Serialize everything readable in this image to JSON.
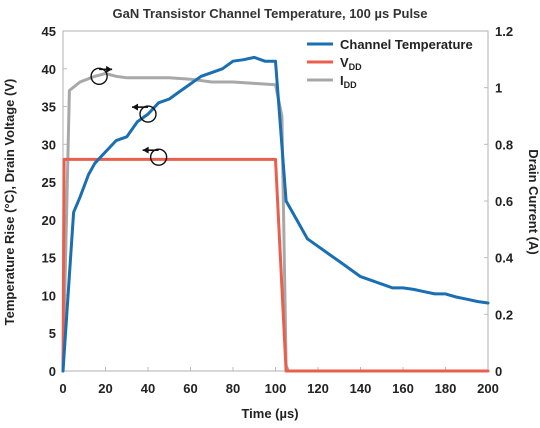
{
  "chart_data": {
    "type": "line",
    "title": "GaN Transistor Channel Temperature, 100 µs Pulse",
    "xlabel": "Time (µs)",
    "ylabel_left": "Temperature Rise (°C), Drain Voltage (V)",
    "ylabel_right": "Drain Current (A)",
    "xlim": [
      0,
      200
    ],
    "ylim_left": [
      0,
      45
    ],
    "ylim_right": [
      0,
      1.2
    ],
    "x_ticks": [
      "0",
      "20",
      "40",
      "60",
      "80",
      "100",
      "120",
      "140",
      "160",
      "180",
      "200"
    ],
    "y_left_ticks": [
      "0",
      "5",
      "10",
      "15",
      "20",
      "25",
      "30",
      "35",
      "40",
      "45"
    ],
    "y_right_ticks": [
      "0",
      "0.2",
      "0.4",
      "0.6",
      "0.8",
      "1",
      "1.2"
    ],
    "grid": false,
    "legend_position": "top-right",
    "series": [
      {
        "name": "Channel Temperature",
        "axis": "left",
        "color": "#1a6fb3",
        "x": [
          0,
          5,
          8,
          12,
          15,
          20,
          25,
          30,
          35,
          40,
          45,
          50,
          55,
          60,
          65,
          70,
          75,
          80,
          85,
          90,
          95,
          100,
          105,
          110,
          115,
          120,
          125,
          130,
          135,
          140,
          145,
          150,
          155,
          160,
          165,
          170,
          175,
          180,
          185,
          190,
          195,
          200
        ],
        "y": [
          0,
          21,
          23,
          26,
          27.5,
          29,
          30.5,
          31,
          33,
          34,
          35.5,
          36,
          37,
          38,
          39,
          39.5,
          40,
          41,
          41.2,
          41.5,
          41,
          41,
          22.5,
          20,
          17.5,
          16.5,
          15.5,
          14.5,
          13.5,
          12.5,
          12,
          11.5,
          11,
          11,
          10.8,
          10.5,
          10.2,
          10.2,
          9.8,
          9.5,
          9.2,
          9
        ]
      },
      {
        "name": "VDD",
        "axis": "left",
        "color": "#e8604c",
        "x": [
          0,
          0.5,
          100,
          105,
          200
        ],
        "y": [
          0,
          28,
          28,
          0,
          0
        ]
      },
      {
        "name": "IDD",
        "axis": "right",
        "color": "#a8a8a8",
        "x": [
          0,
          3,
          8,
          15,
          20,
          25,
          30,
          40,
          50,
          60,
          70,
          80,
          90,
          100,
          103,
          105,
          106
        ],
        "y": [
          0,
          0.99,
          1.02,
          1.04,
          1.05,
          1.04,
          1.035,
          1.035,
          1.035,
          1.03,
          1.02,
          1.02,
          1.015,
          1.01,
          0.9,
          0.02,
          0
        ]
      }
    ],
    "legend": [
      {
        "name": "Channel Temperature",
        "main": "Channel Temperature",
        "sub": ""
      },
      {
        "name": "VDD",
        "main": "V",
        "sub": "DD"
      },
      {
        "name": "IDD",
        "main": "I",
        "sub": "DD"
      }
    ],
    "annotations": [
      {
        "name": "idd-axis-marker",
        "x": 17,
        "y": 39,
        "axis": "left",
        "direction": "right"
      },
      {
        "name": "temperature-axis-marker",
        "x": 40,
        "y": 34,
        "axis": "left",
        "direction": "left"
      },
      {
        "name": "vdd-axis-marker",
        "x": 45,
        "y": 28.3,
        "axis": "left",
        "direction": "left"
      }
    ]
  }
}
